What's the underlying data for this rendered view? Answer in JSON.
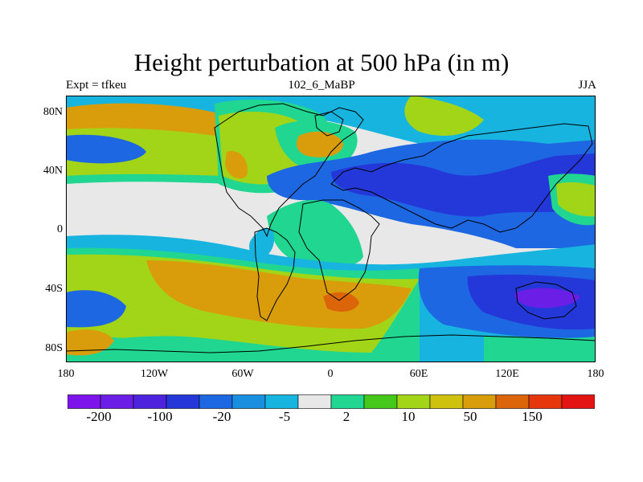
{
  "title": "Height perturbation at 500 hPa (in m)",
  "subtitle_left": "Expt = tfkeu",
  "subtitle_center": "102_6_MaBP",
  "subtitle_right": "JJA",
  "lat_labels": [
    "80N",
    "40N",
    "0",
    "40S",
    "80S"
  ],
  "lon_labels": [
    "180",
    "120W",
    "60W",
    "0",
    "60E",
    "120E",
    "180"
  ],
  "colorbar": {
    "colors": [
      "#7d14ec",
      "#6a1ee6",
      "#4d23dd",
      "#2438da",
      "#1d67e2",
      "#1a8fe0",
      "#17b4e0",
      "#e8e8e8",
      "#20d690",
      "#46c81a",
      "#a2d518",
      "#cfc20f",
      "#d99d0c",
      "#dc650a",
      "#e5360c",
      "#e41414"
    ],
    "labels": [
      "-200",
      "-100",
      "-20",
      "-5",
      "2",
      "10",
      "50",
      "150"
    ]
  },
  "colors": {
    "background": "#e8e8e8",
    "strong_negative": "#2438da",
    "negative": "#1d67e2",
    "weak_negative": "#17b4e0",
    "weak_positive": "#20d690",
    "positive": "#a2d518",
    "strong_positive": "#d99d0c",
    "extreme_positive": "#dc650a",
    "extreme_negative": "#6a1ee6",
    "coastline": "#000000"
  }
}
